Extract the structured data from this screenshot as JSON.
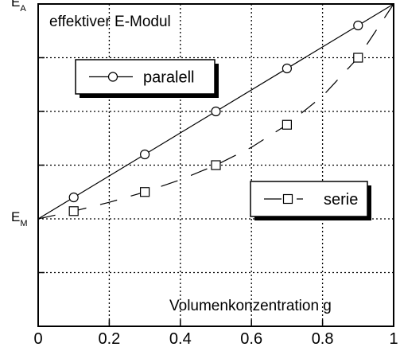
{
  "chart_data": {
    "type": "line",
    "title": "effektiver E-Modul",
    "x_label": "Volumenkonzentration g",
    "xlim": [
      0,
      1
    ],
    "xticks": [
      0,
      0.2,
      0.4,
      0.6,
      0.8,
      1
    ],
    "ylim": [
      -0.5,
      1
    ],
    "yticks": [
      {
        "value": 0,
        "label": "E",
        "sub": "M"
      },
      {
        "value": 1,
        "label": "E",
        "sub": "A"
      }
    ],
    "ygrid": [
      -0.25,
      0.25,
      0.5,
      0.75
    ],
    "grid": true,
    "series": [
      {
        "name": "paralell",
        "color": "#000",
        "marker": "circle",
        "dashed": false,
        "x": [
          0,
          1
        ],
        "values": [
          0,
          1
        ],
        "marker_x": [
          0.1,
          0.3,
          0.5,
          0.7,
          0.9
        ],
        "marker_values": [
          0.1,
          0.3,
          0.5,
          0.7,
          0.9
        ]
      },
      {
        "name": "serie",
        "color": "#000",
        "marker": "square",
        "dashed": true,
        "x": [
          0,
          0.1,
          0.2,
          0.3,
          0.4,
          0.5,
          0.6,
          0.7,
          0.8,
          0.9,
          1
        ],
        "values": [
          0,
          0.036,
          0.077,
          0.125,
          0.182,
          0.25,
          0.333,
          0.438,
          0.571,
          0.75,
          1
        ],
        "marker_x": [
          0.1,
          0.3,
          0.5,
          0.7,
          0.9
        ],
        "marker_values": [
          0.036,
          0.125,
          0.25,
          0.438,
          0.75
        ]
      }
    ]
  }
}
